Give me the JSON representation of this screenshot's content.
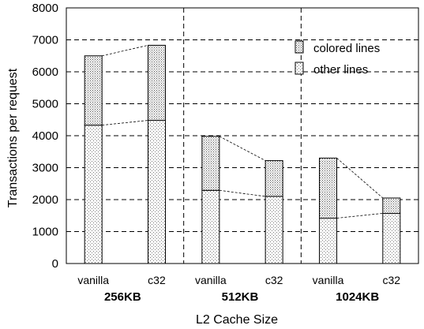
{
  "chart_data": {
    "type": "bar",
    "stacked": true,
    "title": "",
    "xlabel": "L2 Cache Size",
    "ylabel": "Transactions per request",
    "ylim": [
      0,
      8000
    ],
    "yticks": [
      0,
      1000,
      2000,
      3000,
      4000,
      5000,
      6000,
      7000,
      8000
    ],
    "grid": true,
    "legend_position": "top-right",
    "groups": [
      "256KB",
      "512KB",
      "1024KB"
    ],
    "categories": [
      "vanilla",
      "c32"
    ],
    "series": [
      {
        "name": "other lines",
        "values": [
          [
            4330,
            4480
          ],
          [
            2290,
            2100
          ],
          [
            1420,
            1570
          ]
        ]
      },
      {
        "name": "colored lines",
        "values": [
          [
            2170,
            2350
          ],
          [
            1690,
            1120
          ],
          [
            1880,
            480
          ]
        ]
      }
    ],
    "totals": [
      [
        6500,
        6830
      ],
      [
        3980,
        3220
      ],
      [
        3300,
        2050
      ]
    ]
  },
  "colors": {
    "colored_dots": "#555555",
    "other_dots": "#777777",
    "grid": "#000000"
  }
}
